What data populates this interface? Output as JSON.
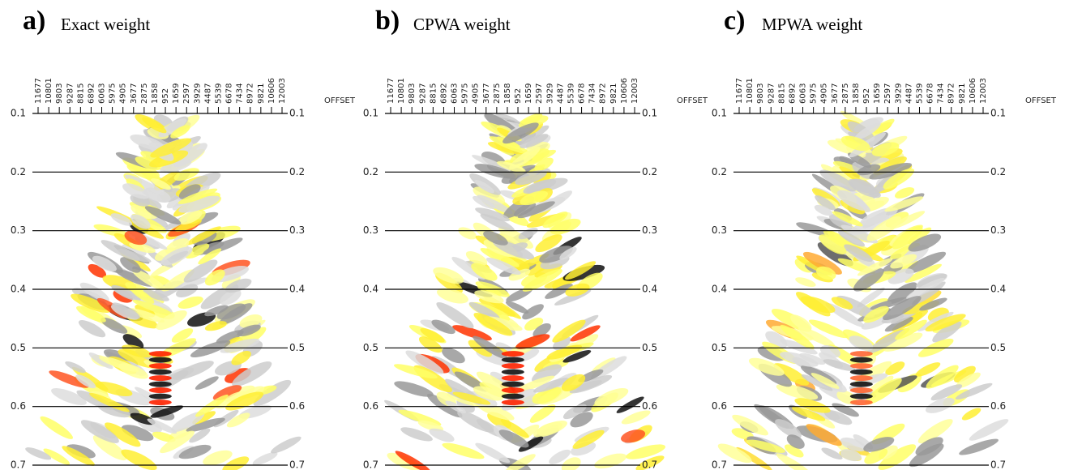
{
  "chart_data": [
    {
      "type": "seismic",
      "panel_label": "a)",
      "title": "Exact weight",
      "x_axis_label": "OFFSET",
      "xticks": [
        "11677",
        "10801",
        "9803",
        "9287",
        "8815",
        "6892",
        "6063",
        "5975",
        "4905",
        "3677",
        "2875",
        "1858",
        "952",
        "1659",
        "2597",
        "3929",
        "4487",
        "5539",
        "6678",
        "7434",
        "8972",
        "9821",
        "10606",
        "12003"
      ],
      "ylim": [
        0.1,
        0.7
      ],
      "yticks": [
        0.1,
        0.2,
        0.3,
        0.4,
        0.5,
        0.6,
        0.7
      ],
      "grid": true
    },
    {
      "type": "seismic",
      "panel_label": "b)",
      "title": "CPWA weight",
      "x_axis_label": "OFFSET",
      "xticks": [
        "11677",
        "10801",
        "9803",
        "9287",
        "8815",
        "6892",
        "6063",
        "5975",
        "4905",
        "3677",
        "2875",
        "1858",
        "952",
        "1659",
        "2597",
        "3929",
        "4487",
        "5539",
        "6678",
        "7434",
        "8972",
        "9821",
        "10606",
        "12003"
      ],
      "ylim": [
        0.1,
        0.7
      ],
      "yticks": [
        0.1,
        0.2,
        0.3,
        0.4,
        0.5,
        0.6,
        0.7
      ],
      "grid": true
    },
    {
      "type": "seismic",
      "panel_label": "c)",
      "title": "MPWA weight",
      "x_axis_label": "OFFSET",
      "xticks": [
        "11677",
        "10801",
        "9803",
        "9287",
        "8815",
        "6892",
        "6063",
        "5975",
        "4905",
        "3677",
        "2875",
        "1858",
        "952",
        "1659",
        "2597",
        "3929",
        "4487",
        "5539",
        "6678",
        "7434",
        "8972",
        "9821",
        "10606",
        "12003"
      ],
      "ylim": [
        0.1,
        0.7
      ],
      "yticks": [
        0.1,
        0.2,
        0.3,
        0.4,
        0.5,
        0.6,
        0.7
      ],
      "grid": true
    }
  ]
}
